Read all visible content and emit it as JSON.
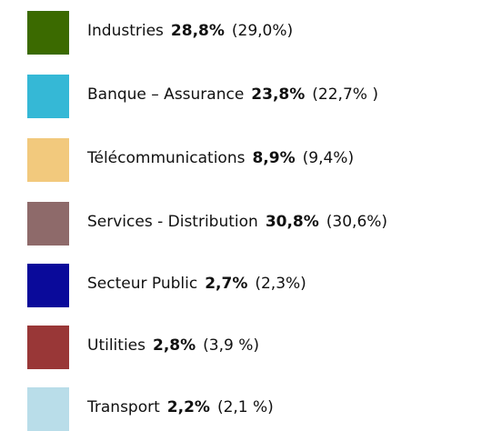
{
  "legend": {
    "items": [
      {
        "label": "Industries",
        "share": "28,8%",
        "previous": "(29,0%)",
        "color": "#3b6a00"
      },
      {
        "label": "Banque – Assurance",
        "share": "23,8%",
        "previous": "(22,7% )",
        "color": "#35b8d6"
      },
      {
        "label": "Télécommunications",
        "share": "8,9%",
        "previous": "(9,4%)",
        "color": "#f2c97d"
      },
      {
        "label": "Services - Distribution",
        "share": "30,8%",
        "previous": "(30,6%)",
        "color": "#8e6a6a"
      },
      {
        "label": "Secteur Public",
        "share": "2,7%",
        "previous": "(2,3%)",
        "color": "#0a0a9a"
      },
      {
        "label": "Utilities",
        "share": "2,8%",
        "previous": "(3,9 %)",
        "color": "#993737"
      },
      {
        "label": "Transport",
        "share": "2,2%",
        "previous": "(2,1 %)",
        "color": "#b9dde9"
      }
    ]
  }
}
